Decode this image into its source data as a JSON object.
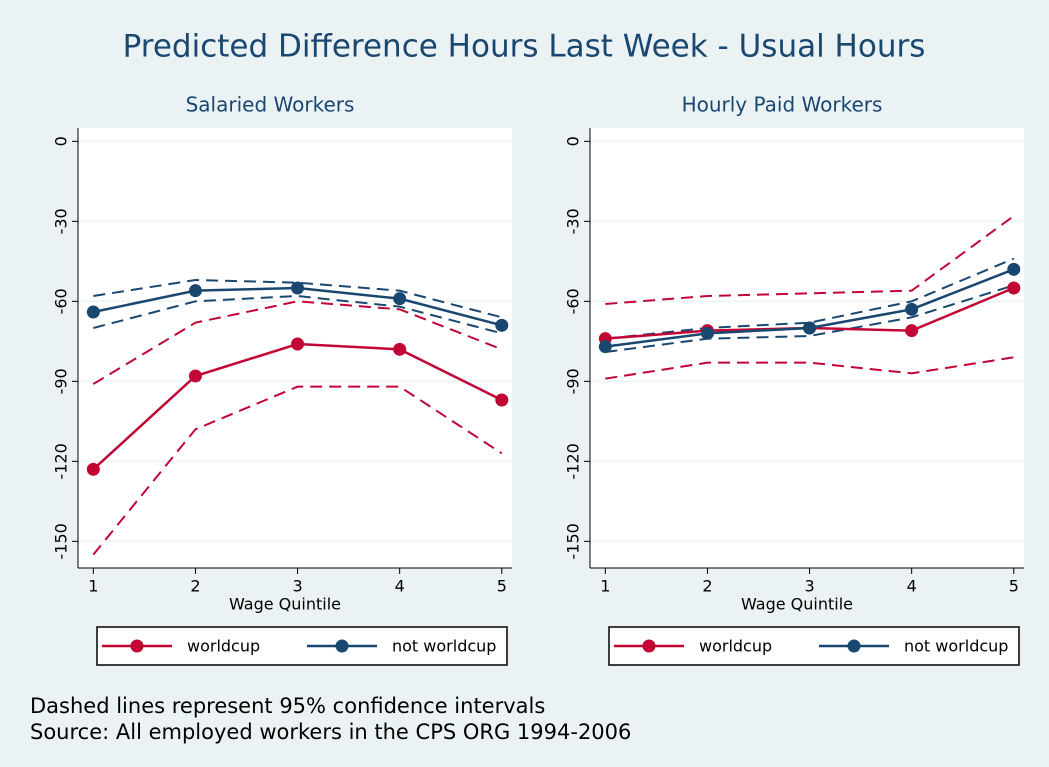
{
  "title": "Predicted Difference Hours Last Week - Usual Hours",
  "notes": [
    "Dashed lines represent 95% confidence intervals",
    "Source: All employed workers in the CPS ORG 1994-2006"
  ],
  "chart_data": [
    {
      "type": "line",
      "title": "Salaried Workers",
      "xlabel": "Wage Quintile",
      "x": [
        1,
        2,
        3,
        4,
        5
      ],
      "xlim": [
        0.85,
        5.1
      ],
      "xticks": [
        1,
        2,
        3,
        4,
        5
      ],
      "ylim": [
        -160,
        5
      ],
      "yticks": [
        0,
        -30,
        -60,
        -90,
        -120,
        -150
      ],
      "grid": true,
      "legend": "bottom",
      "series": [
        {
          "name": "worldcup",
          "color": "#c10534",
          "values": [
            -123,
            -88,
            -76,
            -78,
            -97
          ],
          "ci_upper": [
            -91,
            -68,
            -60,
            -63,
            -78
          ],
          "ci_lower": [
            -155,
            -108,
            -92,
            -92,
            -117
          ]
        },
        {
          "name": "not worldcup",
          "color": "#1a476f",
          "values": [
            -64,
            -56,
            -55,
            -59,
            -69
          ],
          "ci_upper": [
            -58,
            -52,
            -53,
            -56,
            -66
          ],
          "ci_lower": [
            -70,
            -60,
            -58,
            -62,
            -72
          ]
        }
      ]
    },
    {
      "type": "line",
      "title": "Hourly Paid Workers",
      "xlabel": "Wage Quintile",
      "x": [
        1,
        2,
        3,
        4,
        5
      ],
      "xlim": [
        0.85,
        5.1
      ],
      "xticks": [
        1,
        2,
        3,
        4,
        5
      ],
      "ylim": [
        -160,
        5
      ],
      "yticks": [
        0,
        -30,
        -60,
        -90,
        -120,
        -150
      ],
      "grid": true,
      "legend": "bottom",
      "series": [
        {
          "name": "worldcup",
          "color": "#c10534",
          "values": [
            -74,
            -71,
            -70,
            -71,
            -55
          ],
          "ci_upper": [
            -61,
            -58,
            -57,
            -56,
            -28
          ],
          "ci_lower": [
            -89,
            -83,
            -83,
            -87,
            -81
          ]
        },
        {
          "name": "not worldcup",
          "color": "#1a476f",
          "values": [
            -77,
            -72,
            -70,
            -63,
            -48
          ],
          "ci_upper": [
            -74,
            -70,
            -68,
            -60,
            -44
          ],
          "ci_lower": [
            -79,
            -74,
            -73,
            -66,
            -54
          ]
        }
      ]
    }
  ]
}
